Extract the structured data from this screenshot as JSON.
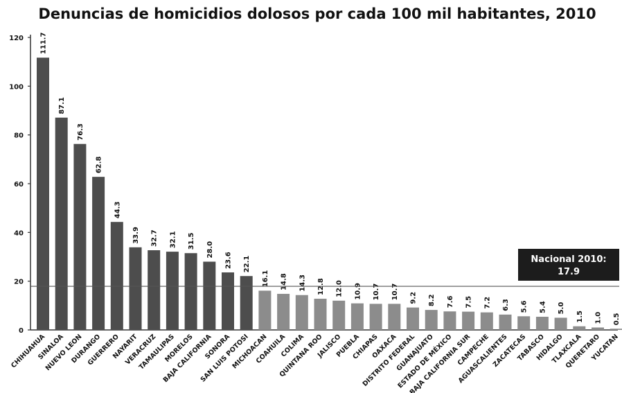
{
  "chart_data": {
    "type": "bar",
    "title": "Denuncias de homicidios dolosos por cada 100 mil habitantes, 2010",
    "xlabel": "",
    "ylabel": "",
    "ylim": [
      0,
      120
    ],
    "yticks": [
      "0",
      "20",
      "40",
      "60",
      "80",
      "100",
      "120"
    ],
    "grid": false,
    "categories": [
      "CHIHUAHUA",
      "SINALOA",
      "NUEVO LEON",
      "DURANGO",
      "GUERRERO",
      "NAYARIT",
      "VERACRUZ",
      "TAMAULIPAS",
      "MORELOS",
      "BAJA CALIFORNIA",
      "SONORA",
      "SAN LUIS POTOSI",
      "MICHOACAN",
      "COAHUILA",
      "COLIMA",
      "QUINTANA ROO",
      "JALISCO",
      "PUEBLA",
      "CHIAPAS",
      "OAXACA",
      "DISTRITO FEDERAL",
      "GUANAJUATO",
      "ESTADO DE MÉXICO",
      "BAJA CALIFORNIA SUR",
      "CAMPECHE",
      "AGUASCALIENTES",
      "ZACATECAS",
      "TABASCO",
      "HIDALGO",
      "TLAXCALA",
      "QUERETARO",
      "YUCATAN"
    ],
    "values": [
      111.7,
      87.1,
      76.3,
      62.8,
      44.3,
      33.9,
      32.7,
      32.1,
      31.5,
      28.0,
      23.6,
      22.1,
      16.1,
      14.8,
      14.3,
      12.8,
      12.0,
      10.9,
      10.7,
      10.7,
      9.2,
      8.2,
      7.6,
      7.5,
      7.2,
      6.3,
      5.6,
      5.4,
      5.0,
      1.5,
      1.0,
      0.5
    ],
    "value_labels": [
      "111.7",
      "87.1",
      "76.3",
      "62.8",
      "44.3",
      "33.9",
      "32.7",
      "32.1",
      "31.5",
      "28.0",
      "23.6",
      "22.1",
      "16.1",
      "14.8",
      "14.3",
      "12.8",
      "12.0",
      "10.9",
      "10.7",
      "10.7",
      "9.2",
      "8.2",
      "7.6",
      "7.5",
      "7.2",
      "6.3",
      "5.6",
      "5.4",
      "5.0",
      "1.5",
      "1.0",
      "0.5"
    ],
    "above_national_count": 12,
    "reference_line": {
      "value": 17.9,
      "label_line1": "Nacional 2010:",
      "label_line2": "17.9"
    },
    "colors": {
      "above": "#4d4d4d",
      "below": "#8c8c8c",
      "axis": "#333333",
      "reference_box": "#1c1c1c"
    }
  }
}
